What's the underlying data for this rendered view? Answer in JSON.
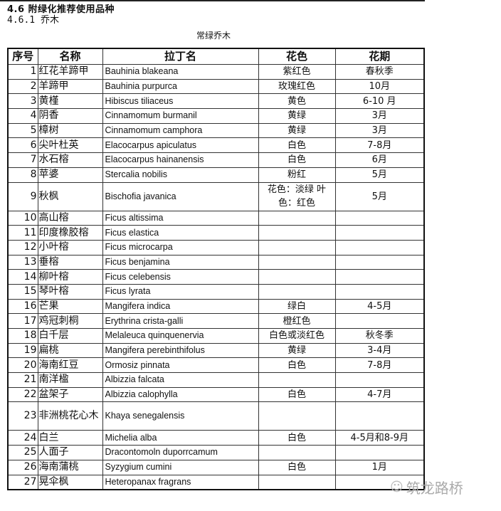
{
  "header": {
    "title": "4.6 附绿化推荐使用品种",
    "subtitle": "4.6.1 乔木",
    "caption": "常绿乔木"
  },
  "table": {
    "columns": [
      "序号",
      "名称",
      "拉丁名",
      "花色",
      "花期"
    ],
    "rows": [
      {
        "no": "1",
        "name": "红花羊蹄甲",
        "latin": "Bauhinia blakeana",
        "color": "紫红色",
        "period": "春秋季"
      },
      {
        "no": "2",
        "name": "羊蹄甲",
        "latin": "Bauhinia purpurca",
        "color": "玫瑰红色",
        "period": "10月"
      },
      {
        "no": "3",
        "name": "黄槿",
        "latin": "Hibiscus tiliaceus",
        "color": "黄色",
        "period": "6-10 月"
      },
      {
        "no": "4",
        "name": "阴香",
        "latin": "Cinnamomum burmanil",
        "color": "黄绿",
        "period": "3月"
      },
      {
        "no": "5",
        "name": "樟树",
        "latin": "Cinnamomum camphora",
        "color": "黄绿",
        "period": "3月"
      },
      {
        "no": "6",
        "name": "尖叶杜英",
        "latin": "Elacocarpus apiculatus",
        "color": "白色",
        "period": "7-8月"
      },
      {
        "no": "7",
        "name": "水石榕",
        "latin": "Elacocarpus hainanensis",
        "color": "白色",
        "period": "6月"
      },
      {
        "no": "8",
        "name": "苹婆",
        "latin": "Stercalia nobilis",
        "color": "粉红",
        "period": "5月"
      },
      {
        "no": "9",
        "name": "秋枫",
        "latin": "Bischofia javanica",
        "color": "花色：淡绿 叶色：红色",
        "period": "5月",
        "tall": true
      },
      {
        "no": "10",
        "name": "高山榕",
        "latin": "Ficus altissima",
        "color": "",
        "period": ""
      },
      {
        "no": "11",
        "name": "印度橡胶榕",
        "latin": "Ficus elastica",
        "color": "",
        "period": ""
      },
      {
        "no": "12",
        "name": "小叶榕",
        "latin": "Ficus microcarpa",
        "color": "",
        "period": ""
      },
      {
        "no": "13",
        "name": "垂榕",
        "latin": "Ficus benjamina",
        "color": "",
        "period": ""
      },
      {
        "no": "14",
        "name": "柳叶榕",
        "latin": "Ficus celebensis",
        "color": "",
        "period": ""
      },
      {
        "no": "15",
        "name": "琴叶榕",
        "latin": "Ficus lyrata",
        "color": "",
        "period": ""
      },
      {
        "no": "16",
        "name": "芒果",
        "latin": "Mangifera indica",
        "color": "绿白",
        "period": "4-5月"
      },
      {
        "no": "17",
        "name": "鸡冠刺桐",
        "latin": "Erythrina crista-galli",
        "color": "橙红色",
        "period": ""
      },
      {
        "no": "18",
        "name": "白千层",
        "latin": "Melaleuca quinquenervia",
        "color": "白色或淡红色",
        "period": "秋冬季"
      },
      {
        "no": "19",
        "name": "扁桃",
        "latin": "Mangifera perebinthifolus",
        "color": "黄绿",
        "period": "3-4月"
      },
      {
        "no": "20",
        "name": "海南红豆",
        "latin": "Ormosiz pinnata",
        "color": "白色",
        "period": "7-8月"
      },
      {
        "no": "21",
        "name": "南洋楹",
        "latin": "Albizzia falcata",
        "color": "",
        "period": ""
      },
      {
        "no": "22",
        "name": "盆架子",
        "latin": "Albizzia calophylla",
        "color": "白色",
        "period": "4-7月"
      },
      {
        "no": "23",
        "name": "非洲桃花心木",
        "latin": "Khaya senegalensis",
        "color": "",
        "period": "",
        "tall": true
      },
      {
        "no": "24",
        "name": "白兰",
        "latin": "Michelia alba",
        "color": "白色",
        "period": "4-5月和8-9月"
      },
      {
        "no": "25",
        "name": "人面子",
        "latin": "Dracontomoln duporrcamum",
        "color": "",
        "period": ""
      },
      {
        "no": "26",
        "name": "海南蒲桃",
        "latin": "Syzygium cumini",
        "color": "白色",
        "period": "1月"
      },
      {
        "no": "27",
        "name": "晃伞枫",
        "latin": "Heteropanax fragrans",
        "color": "",
        "period": ""
      }
    ]
  },
  "watermark": {
    "text": "筑龙路桥",
    "icon": "wechat-icon"
  }
}
